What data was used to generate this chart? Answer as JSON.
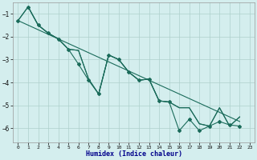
{
  "xlabel": "Humidex (Indice chaleur)",
  "xlim": [
    -0.5,
    23.5
  ],
  "ylim": [
    -6.6,
    -0.5
  ],
  "yticks": [
    -6,
    -5,
    -4,
    -3,
    -2,
    -1
  ],
  "xticks": [
    0,
    1,
    2,
    3,
    4,
    5,
    6,
    7,
    8,
    9,
    10,
    11,
    12,
    13,
    14,
    15,
    16,
    17,
    18,
    19,
    20,
    21,
    22,
    23
  ],
  "bg_color": "#d4eeee",
  "grid_color": "#aed0cc",
  "line_color": "#1a6b5a",
  "series_zigzag": {
    "x": [
      0,
      1,
      2,
      3,
      4,
      5,
      6,
      7,
      8,
      9,
      10,
      11,
      12,
      13,
      14,
      15,
      16,
      17,
      18,
      19,
      20,
      21,
      22
    ],
    "y": [
      -1.3,
      -0.7,
      -1.5,
      -1.85,
      -2.1,
      -2.55,
      -3.2,
      -3.9,
      -4.5,
      -2.8,
      -3.0,
      -3.55,
      -3.9,
      -3.85,
      -4.8,
      -4.85,
      -6.1,
      -5.6,
      -6.1,
      -5.9,
      -5.7,
      -5.85,
      -5.9
    ]
  },
  "series_middle1": {
    "x": [
      0,
      1,
      2,
      3,
      4,
      5,
      6,
      7,
      8,
      9,
      10,
      11,
      12,
      13,
      14,
      15,
      16,
      17,
      18,
      19,
      20,
      21,
      22
    ],
    "y": [
      -1.3,
      -0.7,
      -1.5,
      -1.85,
      -2.1,
      -2.55,
      -2.6,
      -3.85,
      -4.5,
      -2.8,
      -3.0,
      -3.55,
      -3.9,
      -3.85,
      -4.8,
      -4.85,
      -5.1,
      -5.1,
      -5.8,
      -5.9,
      -5.1,
      -5.9,
      -5.5
    ]
  },
  "series_middle2": {
    "x": [
      1,
      2,
      3,
      4,
      5,
      6,
      7,
      8,
      9,
      10,
      11,
      12,
      13,
      14,
      15,
      16,
      17,
      18,
      19,
      20,
      21,
      22
    ],
    "y": [
      -0.7,
      -1.5,
      -1.85,
      -2.1,
      -2.55,
      -2.6,
      -3.85,
      -4.5,
      -2.8,
      -3.0,
      -3.55,
      -3.9,
      -3.85,
      -4.8,
      -4.85,
      -5.1,
      -5.1,
      -5.8,
      -5.9,
      -5.1,
      -5.9,
      -5.5
    ]
  },
  "series_straight": {
    "x": [
      0,
      22
    ],
    "y": [
      -1.3,
      -5.7
    ]
  }
}
